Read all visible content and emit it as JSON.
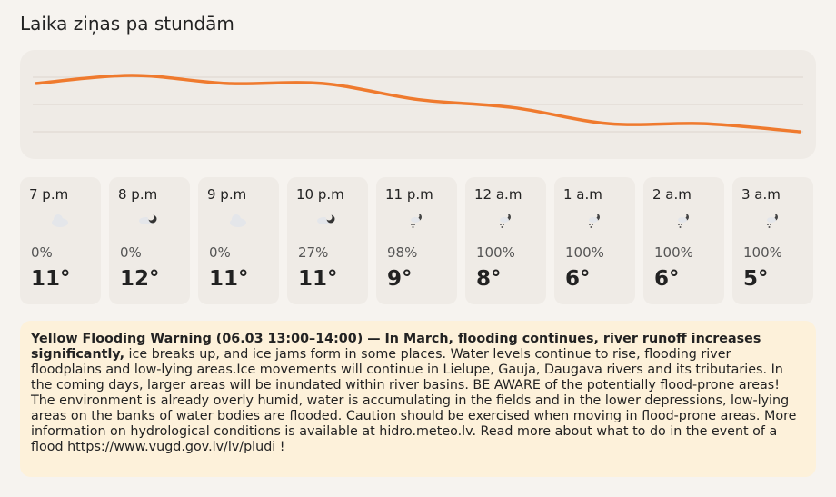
{
  "header": {
    "title": "Laika ziņas pa stundām"
  },
  "chart_data": {
    "type": "line",
    "color": "#ef7a2e",
    "categories": [
      "7 p.m",
      "8 p.m",
      "9 p.m",
      "10 p.m",
      "11 p.m",
      "12 a.m",
      "1 a.m",
      "2 a.m",
      "3 a.m"
    ],
    "values": [
      11,
      12,
      11,
      11,
      9,
      8,
      6,
      6,
      5
    ],
    "value_labels": [
      "11°",
      "12°",
      "11°",
      "11°",
      "9°",
      "8°",
      "6°",
      "6°",
      "5°"
    ],
    "ylim": [
      5,
      12
    ]
  },
  "precipitation": [
    "0%",
    "0%",
    "0%",
    "27%",
    "98%",
    "100%",
    "100%",
    "100%",
    "100%"
  ],
  "warning": {
    "title": "Yellow Flooding Warning (06.03 13:00–14:00) — In March, flooding continues, river runoff increases significantly,",
    "text": "ice breaks up, and ice jams form in some places. Water levels continue to rise, flooding river floodplains and low-lying areas.Ice movements will continue in Lielupe, Gauja, Daugava rivers and its tributaries. In the coming days, larger areas will be inundated within river basins. BE AWARE of the potentially flood-prone areas! The environment is already overly humid, water is accumulating in the fields and in the lower depressions, low-lying areas on the banks of water bodies are flooded. Caution should be exercised when moving in flood-prone areas. More information on hydrological conditions is available at hidro.meteo.lv. Read more about what to do in the event of a flood https://www.vugd.gov.lv/lv/pludi !"
  }
}
